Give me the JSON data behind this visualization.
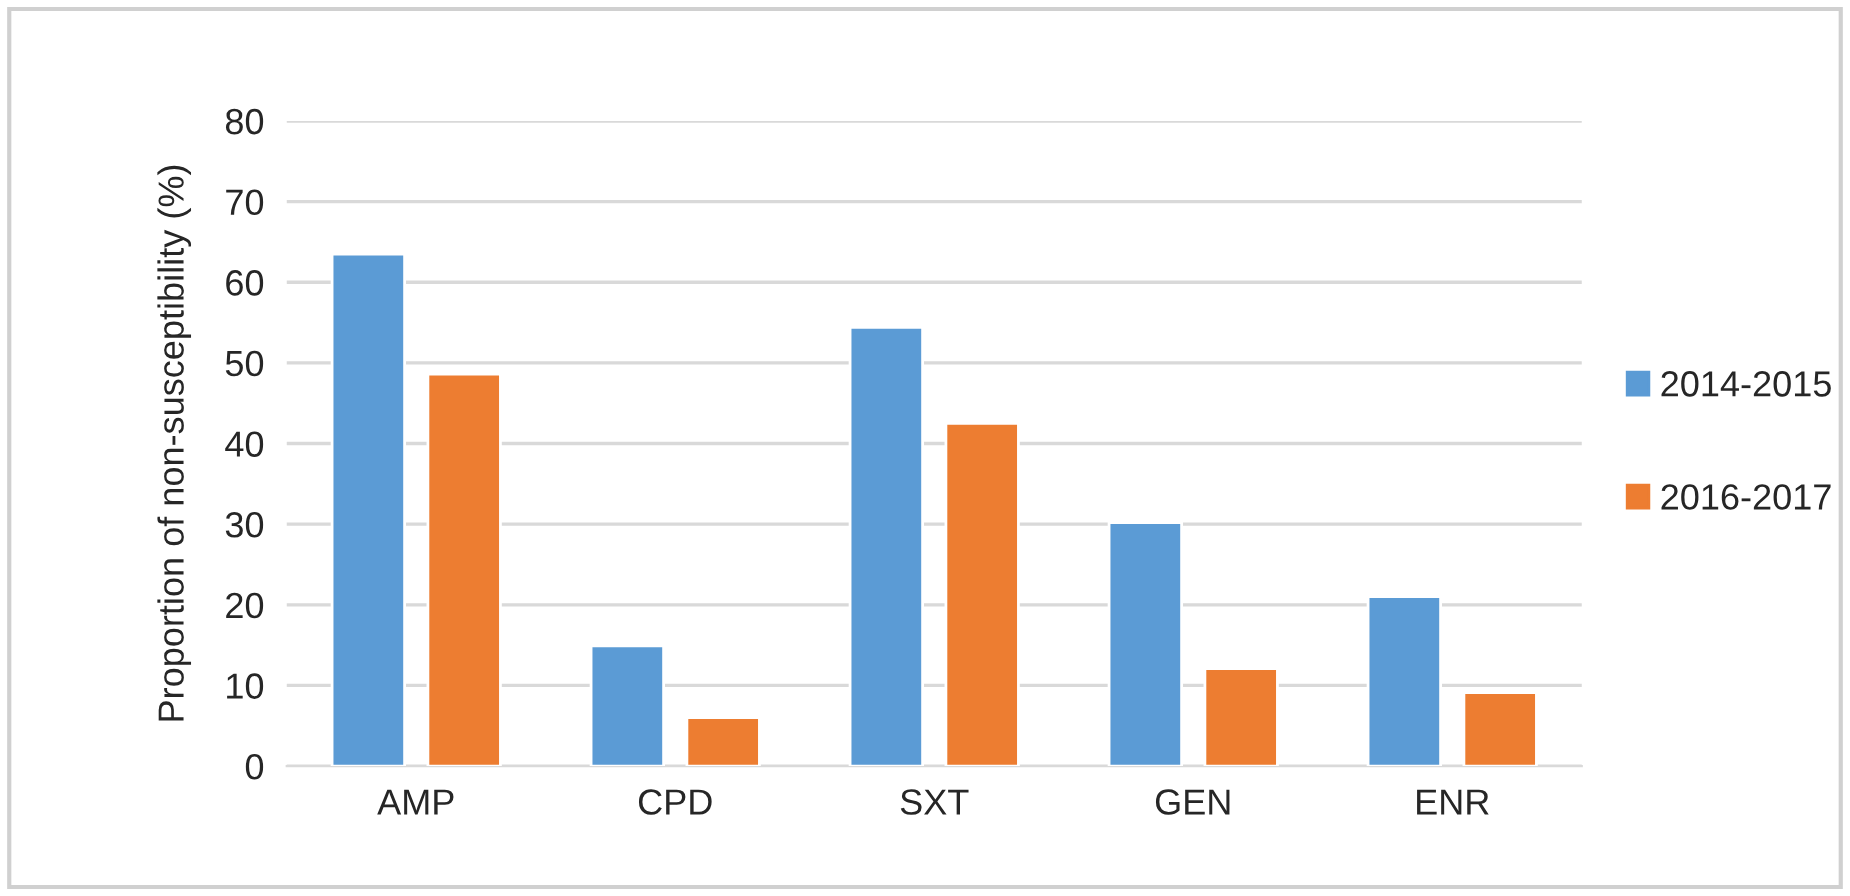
{
  "chart_data": {
    "type": "bar",
    "ylabel": "Proportion of non-susceptibility (%)",
    "categories": [
      "AMP",
      "CPD",
      "SXT",
      "GEN",
      "ENR"
    ],
    "series": [
      {
        "name": "2014-2015",
        "color": "#5b9bd5",
        "values": [
          63.5,
          14.9,
          54.4,
          30.2,
          21.0
        ]
      },
      {
        "name": "2016-2017",
        "color": "#ed7d31",
        "values": [
          48.6,
          6.0,
          42.5,
          12.1,
          9.1
        ]
      }
    ],
    "ylim": [
      0,
      80
    ],
    "yticks": [
      0,
      10,
      20,
      30,
      40,
      50,
      60,
      70,
      80
    ],
    "grid": "y",
    "legend": "right"
  }
}
